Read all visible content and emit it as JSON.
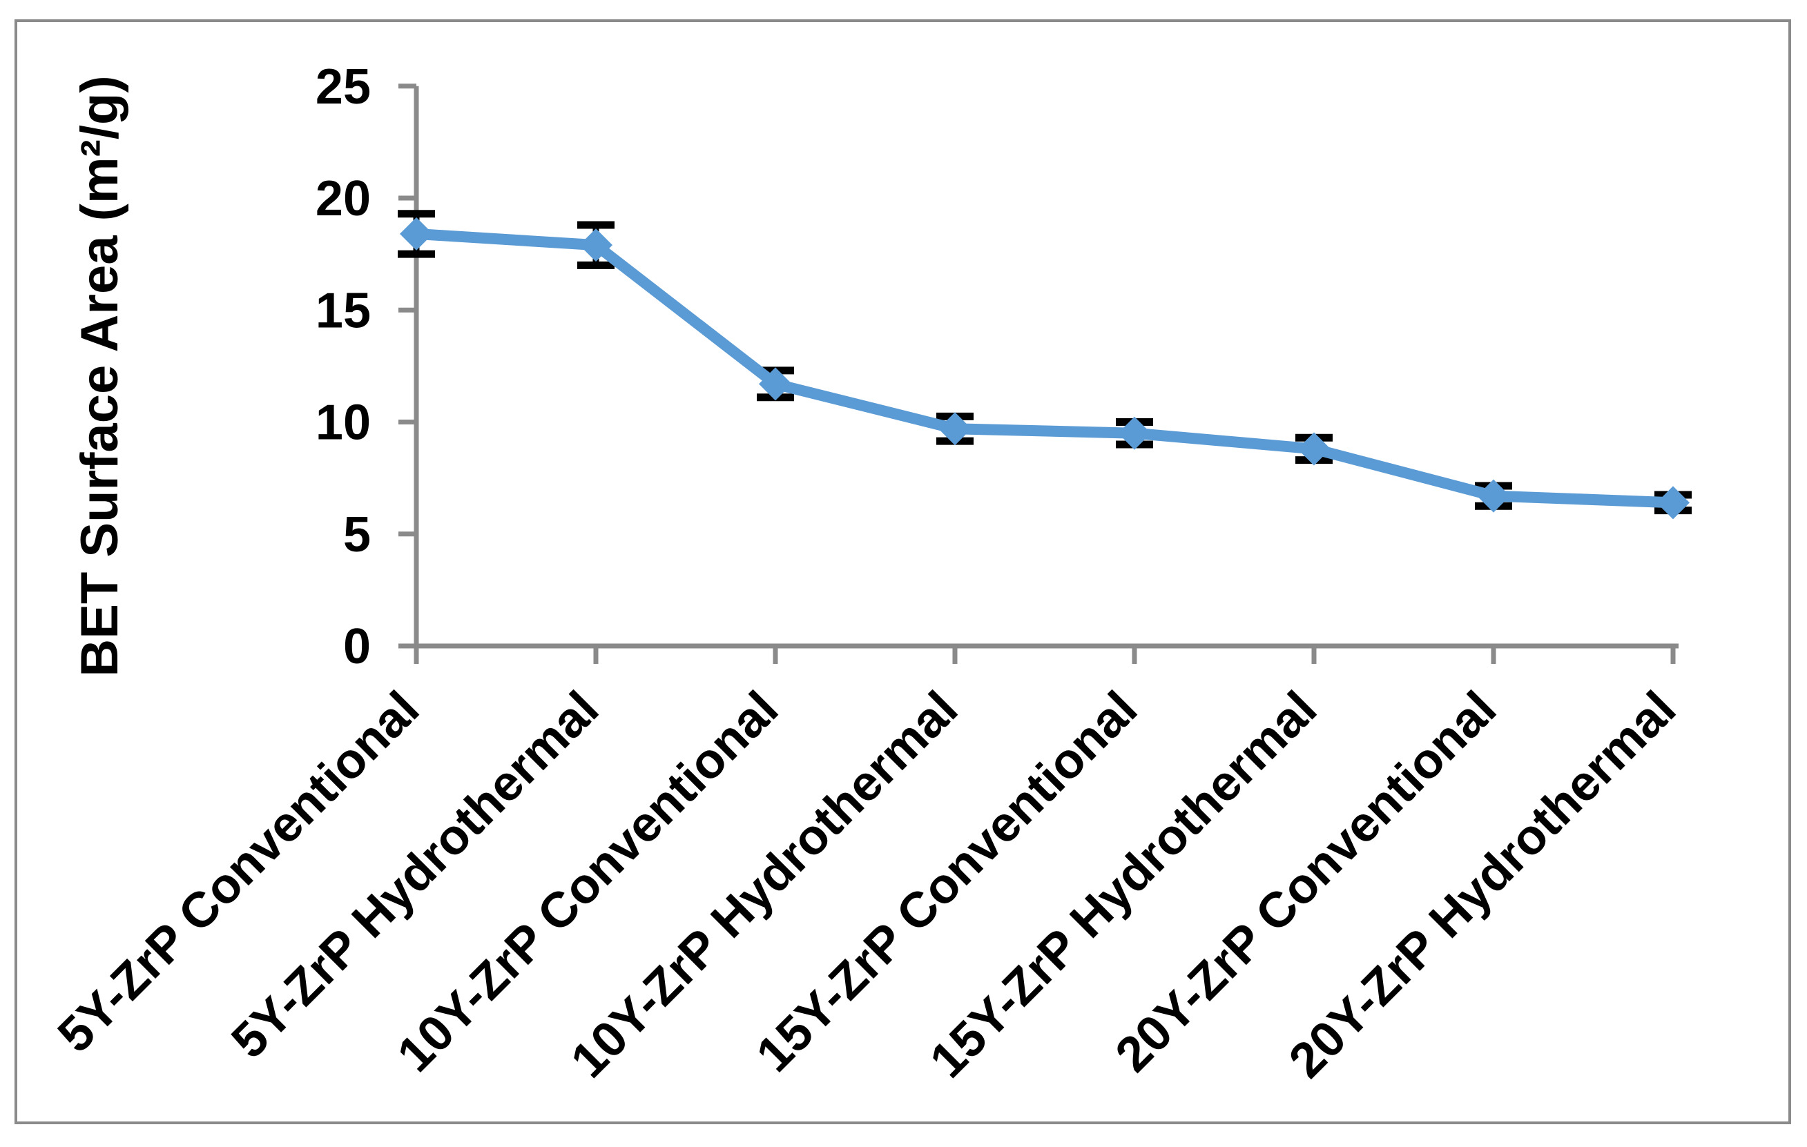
{
  "chart_data": {
    "type": "line",
    "title": "",
    "xlabel": "",
    "ylabel": "BET Surface Area (m²/g)",
    "categories": [
      "5Y-ZrP Conventional",
      "5Y-ZrP Hydrothermal",
      "10Y-ZrP Conventional",
      "10Y-ZrP Hydrothermal",
      "15Y-ZrP Conventional",
      "15Y-ZrP Hydrothermal",
      "20Y-ZrP Conventional",
      "20Y-ZrP Hydrothermal"
    ],
    "series": [
      {
        "name": "BET Surface Area",
        "values": [
          18.4,
          17.9,
          11.7,
          9.7,
          9.5,
          8.8,
          6.7,
          6.4
        ],
        "error_bars": [
          0.9,
          0.9,
          0.6,
          0.55,
          0.5,
          0.5,
          0.45,
          0.35
        ],
        "marker": "diamond"
      }
    ],
    "ylim": [
      0,
      25
    ],
    "y_ticks": [
      0,
      5,
      10,
      15,
      20,
      25
    ],
    "grid": false,
    "legend": false,
    "x_tick_label_rotation_deg": 45,
    "colors": {
      "series_line": "#5B9BD5",
      "marker_fill": "#5B9BD5",
      "error_bar": "#000000",
      "axis_line": "#8A8A8A",
      "text": "#000000",
      "background": "#FFFFFF",
      "chart_border": "#8A8A8A"
    }
  }
}
